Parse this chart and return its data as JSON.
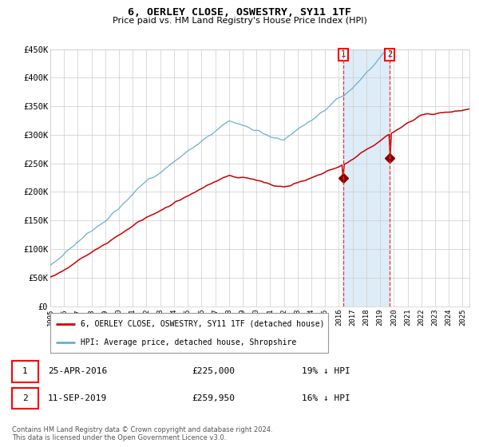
{
  "title": "6, OERLEY CLOSE, OSWESTRY, SY11 1TF",
  "subtitle": "Price paid vs. HM Land Registry's House Price Index (HPI)",
  "legend_line1": "6, OERLEY CLOSE, OSWESTRY, SY11 1TF (detached house)",
  "legend_line2": "HPI: Average price, detached house, Shropshire",
  "footer": "Contains HM Land Registry data © Crown copyright and database right 2024.\nThis data is licensed under the Open Government Licence v3.0.",
  "transaction1_date": "25-APR-2016",
  "transaction1_price": "£225,000",
  "transaction1_hpi": "19% ↓ HPI",
  "transaction1_year": 2016.32,
  "transaction1_value": 225000,
  "transaction2_date": "11-SEP-2019",
  "transaction2_price": "£259,950",
  "transaction2_hpi": "16% ↓ HPI",
  "transaction2_year": 2019.7,
  "transaction2_value": 259950,
  "hpi_color": "#6baed6",
  "price_color": "#cc0000",
  "marker_color": "#8b0000",
  "dashed_line_color": "#ee3333",
  "shade_color": "#d6e8f5",
  "grid_color": "#cccccc",
  "background_color": "#ffffff",
  "ylim_min": 0,
  "ylim_max": 450000,
  "xlim_min": 1995,
  "xlim_max": 2025.5,
  "ytick_values": [
    0,
    50000,
    100000,
    150000,
    200000,
    250000,
    300000,
    350000,
    400000,
    450000
  ],
  "ytick_labels": [
    "£0",
    "£50K",
    "£100K",
    "£150K",
    "£200K",
    "£250K",
    "£300K",
    "£350K",
    "£400K",
    "£450K"
  ]
}
